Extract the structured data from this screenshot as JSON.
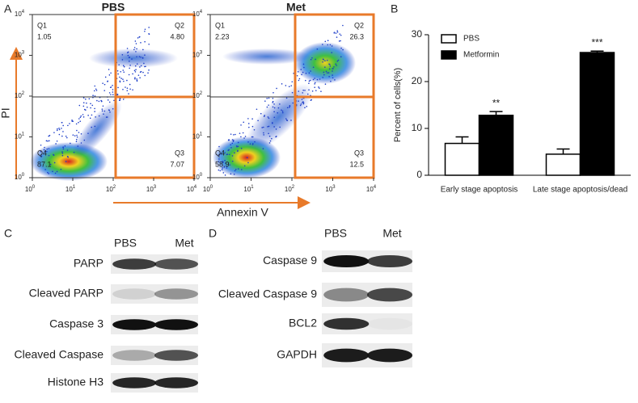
{
  "panels": [
    "A",
    "B",
    "C",
    "D"
  ],
  "flow": {
    "x_label": "Annexin V",
    "y_label": "PI",
    "tick_base": "10",
    "tick_exponents": [
      0,
      1,
      2,
      3,
      4
    ],
    "plots": [
      {
        "title": "PBS",
        "quadrants": [
          {
            "name": "Q1",
            "value": "1.05"
          },
          {
            "name": "Q2",
            "value": "4.80"
          },
          {
            "name": "Q3",
            "value": "7.07"
          },
          {
            "name": "Q4",
            "value": "87.1"
          }
        ]
      },
      {
        "title": "Met",
        "quadrants": [
          {
            "name": "Q1",
            "value": "2.23"
          },
          {
            "name": "Q2",
            "value": "26.3"
          },
          {
            "name": "Q3",
            "value": "12.5"
          },
          {
            "name": "Q4",
            "value": "58.9"
          }
        ]
      }
    ]
  },
  "chart_data": {
    "type": "bar",
    "y_label": "Percent of cells(%)",
    "categories": [
      "Early stage apoptosis",
      "Late stage apoptosis/dead"
    ],
    "series": [
      {
        "name": "PBS",
        "color": "#ffffff",
        "values": [
          6.8,
          4.5
        ],
        "errors": [
          1.4,
          1.1
        ]
      },
      {
        "name": "Metformin",
        "color": "#000000",
        "values": [
          12.8,
          26.2
        ],
        "errors": [
          0.8,
          0.3
        ]
      }
    ],
    "significance": [
      "**",
      "***"
    ],
    "ylim": [
      0,
      30
    ],
    "yticks": [
      0,
      10,
      20,
      30
    ]
  },
  "western_c": {
    "columns": [
      "PBS",
      "Met"
    ],
    "rows": [
      "PARP",
      "Cleaved PARP",
      "Caspase 3",
      "Cleaved Caspase",
      "Histone H3"
    ]
  },
  "western_d": {
    "columns": [
      "PBS",
      "Met"
    ],
    "rows": [
      "Caspase 9",
      "Cleaved Caspase 9",
      "BCL2",
      "GAPDH"
    ]
  }
}
